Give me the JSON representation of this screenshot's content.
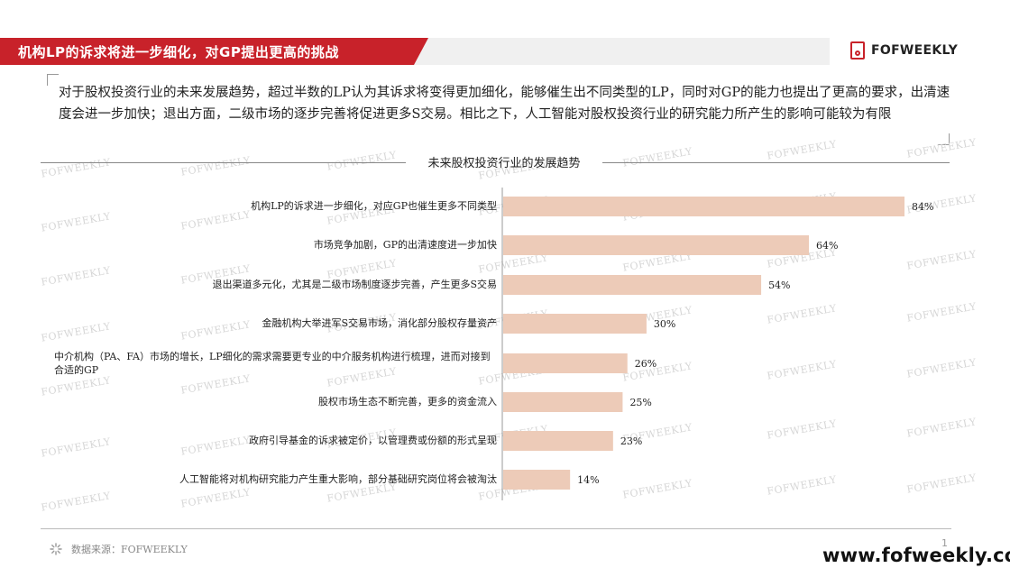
{
  "header": {
    "title": "机构LP的诉求将进一步细化，对GP提出更高的挑战",
    "logo_text": "FOFWEEKLY"
  },
  "summary": {
    "text": "对于股权投资行业的未来发展趋势，超过半数的LP认为其诉求将变得更加细化，能够催生出不同类型的LP，同时对GP的能力也提出了更高的要求，出清速度会进一步加快；退出方面，二级市场的逐步完善将促进更多S交易。相比之下，人工智能对股权投资行业的研究能力所产生的影响可能较为有限"
  },
  "chart_data": {
    "type": "bar",
    "orientation": "horizontal",
    "title": "未来股权投资行业的发展趋势",
    "xlabel": "",
    "ylabel": "",
    "xlim": [
      0,
      100
    ],
    "categories": [
      "机构LP的诉求进一步细化，对应GP也催生更多不同类型",
      "市场竞争加剧，GP的出清速度进一步加快",
      "退出渠道多元化，尤其是二级市场制度逐步完善，产生更多S交易",
      "金融机构大举进军S交易市场，消化部分股权存量资产",
      "中介机构（PA、FA）市场的增长，LP细化的需求需要更专业的中介服务机构进行梳理，进而对接到合适的GP",
      "股权市场生态不断完善，更多的资金流入",
      "政府引导基金的诉求被定价，以管理费或份额的形式呈现",
      "人工智能将对机构研究能力产生重大影响，部分基础研究岗位将会被淘汰"
    ],
    "values": [
      84,
      64,
      54,
      30,
      26,
      25,
      23,
      14
    ],
    "value_labels": [
      "84%",
      "64%",
      "54%",
      "30%",
      "26%",
      "25%",
      "23%",
      "14%"
    ],
    "bar_color": "#edcbb8",
    "grid": false
  },
  "footer": {
    "source": "数据来源：FOFWEEKLY",
    "page_number": "1",
    "website": "www.fofweekly.com"
  },
  "watermark": {
    "text": "FOFWEEKLY"
  },
  "colors": {
    "accent": "#c8222a",
    "bar": "#edcbb8"
  }
}
